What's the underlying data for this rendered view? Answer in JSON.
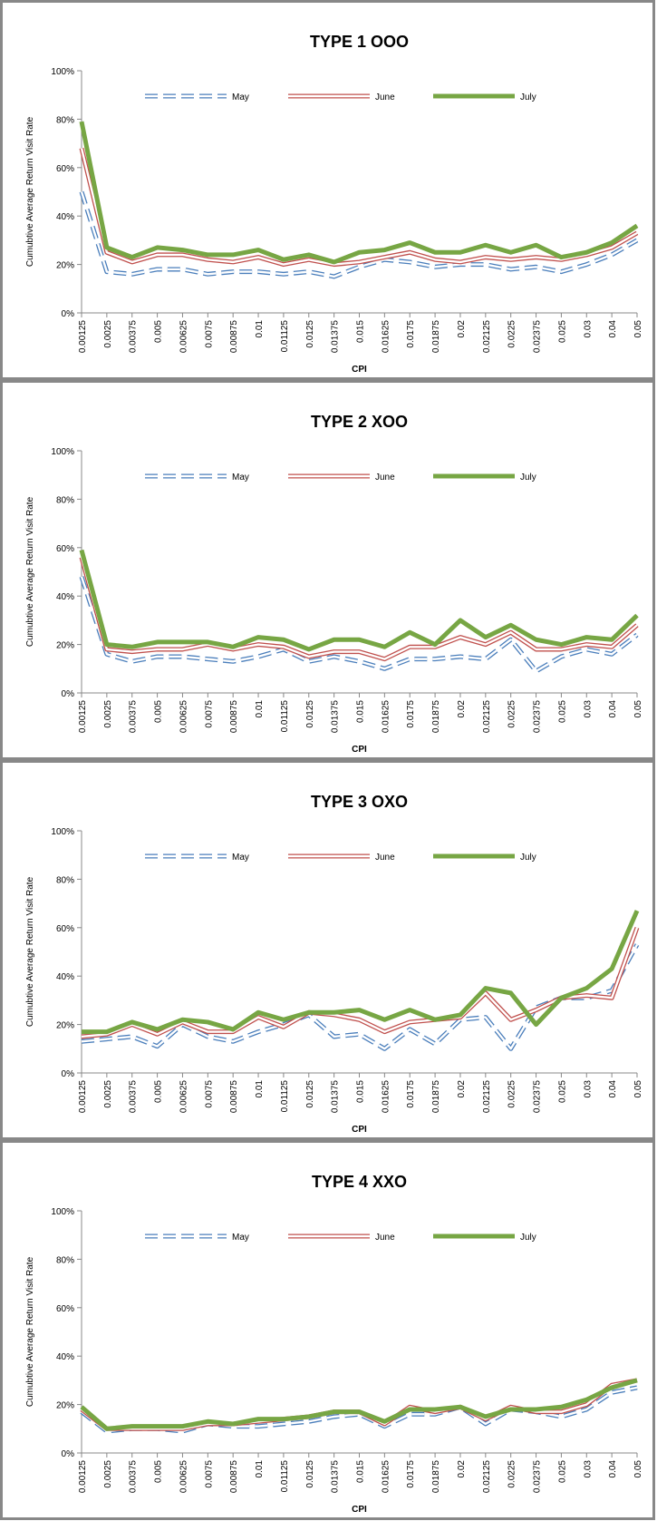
{
  "chart_data": [
    {
      "type": "line",
      "title": "TYPE 1 OOO",
      "x_label": "CPI",
      "y_label": "Cumubtive  Average Return Visit Rate",
      "categories": [
        "0.00125",
        "0.0025",
        "0.00375",
        "0.005",
        "0.00625",
        "0.0075",
        "0.00875",
        "0.01",
        "0.01125",
        "0.0125",
        "0.01375",
        "0.015",
        "0.01625",
        "0.0175",
        "0.01875",
        "0.02",
        "0.02125",
        "0.0225",
        "0.02375",
        "0.025",
        "0.03",
        "0.04",
        "0.05"
      ],
      "ylim": [
        0,
        100
      ],
      "yticks": [
        {
          "value": 0,
          "label": "0%"
        },
        {
          "value": 20,
          "label": "20%"
        },
        {
          "value": 40,
          "label": "40%"
        },
        {
          "value": 60,
          "label": "60%"
        },
        {
          "value": 80,
          "label": "80%"
        },
        {
          "value": 100,
          "label": "100%"
        }
      ],
      "series": [
        {
          "name": "May",
          "color": "#4a7ebb",
          "line_style": "dashed-outline",
          "values": [
            50,
            17,
            16,
            18,
            18,
            16,
            17,
            17,
            16,
            17,
            15,
            19,
            22,
            21,
            19,
            20,
            20,
            18,
            19,
            17,
            20,
            24,
            30
          ]
        },
        {
          "name": "June",
          "color": "#c0504d",
          "line_style": "outline",
          "values": [
            68,
            25,
            21,
            24,
            24,
            22,
            21,
            23,
            20,
            22,
            20,
            21,
            23,
            25,
            22,
            21,
            23,
            22,
            23,
            22,
            24,
            27,
            33
          ]
        },
        {
          "name": "July",
          "color": "#77a644",
          "line_style": "solid",
          "values": [
            79,
            27,
            23,
            27,
            26,
            24,
            24,
            26,
            22,
            24,
            21,
            25,
            26,
            29,
            25,
            25,
            28,
            25,
            28,
            23,
            25,
            29,
            36
          ]
        }
      ]
    },
    {
      "type": "line",
      "title": "TYPE 2 XOO",
      "x_label": "CPI",
      "y_label": "Cumubtive  Average Return Visit Rate",
      "categories": [
        "0.00125",
        "0.0025",
        "0.00375",
        "0.005",
        "0.00625",
        "0.0075",
        "0.00875",
        "0.01",
        "0.01125",
        "0.0125",
        "0.01375",
        "0.015",
        "0.01625",
        "0.0175",
        "0.01875",
        "0.02",
        "0.02125",
        "0.0225",
        "0.02375",
        "0.025",
        "0.03",
        "0.04",
        "0.05"
      ],
      "ylim": [
        0,
        100
      ],
      "yticks": [
        {
          "value": 0,
          "label": "0%"
        },
        {
          "value": 20,
          "label": "20%"
        },
        {
          "value": 40,
          "label": "40%"
        },
        {
          "value": 60,
          "label": "60%"
        },
        {
          "value": 80,
          "label": "80%"
        },
        {
          "value": 100,
          "label": "100%"
        }
      ],
      "series": [
        {
          "name": "May",
          "color": "#4a7ebb",
          "line_style": "dashed-outline",
          "values": [
            48,
            16,
            13,
            15,
            15,
            14,
            13,
            15,
            18,
            13,
            15,
            13,
            10,
            14,
            14,
            15,
            14,
            22,
            9,
            15,
            18,
            16,
            24
          ]
        },
        {
          "name": "June",
          "color": "#c0504d",
          "line_style": "outline",
          "values": [
            56,
            18,
            17,
            18,
            18,
            20,
            18,
            20,
            19,
            15,
            17,
            17,
            14,
            19,
            19,
            23,
            20,
            25,
            18,
            18,
            20,
            19,
            28
          ]
        },
        {
          "name": "July",
          "color": "#77a644",
          "line_style": "solid",
          "values": [
            59,
            20,
            19,
            21,
            21,
            21,
            19,
            23,
            22,
            18,
            22,
            22,
            19,
            25,
            20,
            30,
            23,
            28,
            22,
            20,
            23,
            22,
            32
          ]
        }
      ]
    },
    {
      "type": "line",
      "title": "TYPE 3 OXO",
      "x_label": "CPI",
      "y_label": "Cumubtive  Average Return Visit Rate",
      "categories": [
        "0.00125",
        "0.0025",
        "0.00375",
        "0.005",
        "0.00625",
        "0.0075",
        "0.00875",
        "0.01",
        "0.01125",
        "0.0125",
        "0.01375",
        "0.015",
        "0.01625",
        "0.0175",
        "0.01875",
        "0.02",
        "0.02125",
        "0.0225",
        "0.02375",
        "0.025",
        "0.03",
        "0.04",
        "0.05"
      ],
      "ylim": [
        0,
        100
      ],
      "yticks": [
        {
          "value": 0,
          "label": "0%"
        },
        {
          "value": 20,
          "label": "20%"
        },
        {
          "value": 40,
          "label": "40%"
        },
        {
          "value": 60,
          "label": "60%"
        },
        {
          "value": 80,
          "label": "80%"
        },
        {
          "value": 100,
          "label": "100%"
        }
      ],
      "series": [
        {
          "name": "May",
          "color": "#4a7ebb",
          "line_style": "dashed-outline",
          "values": [
            13,
            14,
            15,
            11,
            20,
            15,
            13,
            17,
            20,
            24,
            15,
            16,
            10,
            18,
            12,
            22,
            23,
            10,
            27,
            31,
            31,
            34,
            53
          ]
        },
        {
          "name": "June",
          "color": "#c0504d",
          "line_style": "outline",
          "values": [
            15,
            16,
            20,
            16,
            21,
            17,
            17,
            23,
            19,
            25,
            24,
            22,
            17,
            21,
            22,
            23,
            33,
            22,
            26,
            31,
            32,
            31,
            60
          ]
        },
        {
          "name": "July",
          "color": "#77a644",
          "line_style": "solid",
          "values": [
            17,
            17,
            21,
            18,
            22,
            21,
            18,
            25,
            22,
            25,
            25,
            26,
            22,
            26,
            22,
            24,
            35,
            33,
            20,
            31,
            35,
            43,
            67
          ]
        }
      ]
    },
    {
      "type": "line",
      "title": "TYPE 4 XXO",
      "x_label": "CPI",
      "y_label": "Cumubtive  Average Return Visit Rate",
      "categories": [
        "0.00125",
        "0.0025",
        "0.00375",
        "0.005",
        "0.00625",
        "0.0075",
        "0.00875",
        "0.01",
        "0.01125",
        "0.0125",
        "0.01375",
        "0.015",
        "0.01625",
        "0.0175",
        "0.01875",
        "0.02",
        "0.02125",
        "0.0225",
        "0.02375",
        "0.025",
        "0.03",
        "0.04",
        "0.05"
      ],
      "ylim": [
        0,
        100
      ],
      "yticks": [
        {
          "value": 0,
          "label": "0%"
        },
        {
          "value": 20,
          "label": "20%"
        },
        {
          "value": 40,
          "label": "40%"
        },
        {
          "value": 60,
          "label": "60%"
        },
        {
          "value": 80,
          "label": "80%"
        },
        {
          "value": 100,
          "label": "100%"
        }
      ],
      "series": [
        {
          "name": "May",
          "color": "#4a7ebb",
          "line_style": "dashed-outline",
          "values": [
            17,
            9,
            10,
            10,
            9,
            12,
            11,
            11,
            12,
            13,
            15,
            16,
            11,
            16,
            16,
            19,
            12,
            18,
            17,
            15,
            18,
            25,
            27
          ]
        },
        {
          "name": "June",
          "color": "#c0504d",
          "line_style": "outline",
          "values": [
            18,
            10,
            10,
            10,
            10,
            12,
            12,
            13,
            14,
            15,
            17,
            17,
            12,
            19,
            17,
            19,
            14,
            19,
            17,
            17,
            20,
            28,
            30
          ]
        },
        {
          "name": "July",
          "color": "#77a644",
          "line_style": "solid",
          "values": [
            19,
            10,
            11,
            11,
            11,
            13,
            12,
            14,
            14,
            15,
            17,
            17,
            13,
            18,
            18,
            19,
            15,
            18,
            18,
            19,
            22,
            27,
            30
          ]
        }
      ]
    }
  ]
}
